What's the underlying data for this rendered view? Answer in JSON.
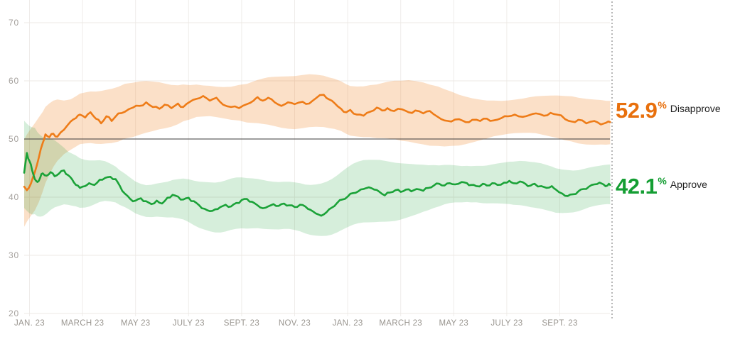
{
  "colors": {
    "background": "#ffffff",
    "grid_horizontal": "#ece8e4",
    "grid_vertical": "#efecea",
    "reference_line": "#3d3d3d",
    "axis_label": "#a09c97",
    "divider": "#9e9e9e",
    "disapprove_line": "#ee7c18",
    "disapprove_band": "rgba(238,124,24,0.24)",
    "disapprove_text": "#e8700d",
    "approve_line": "#1ba238",
    "approve_band": "rgba(27,162,56,0.18)",
    "approve_text": "#149e33",
    "annotation_label_text": "#1f1f1f"
  },
  "chart_data": {
    "type": "line",
    "legend_position": "right-end-labels",
    "grid": true,
    "x_axis": {
      "tick_labels": [
        "JAN. 23",
        "MARCH 23",
        "MAY 23",
        "JULY 23",
        "SEPT. 23",
        "NOV. 23",
        "JAN. 23",
        "MARCH 23",
        "MAY 23",
        "JULY 23",
        "SEPT. 23"
      ],
      "tick_months": [
        0,
        2,
        4,
        6,
        8,
        10,
        12,
        14,
        16,
        18,
        20
      ],
      "unit": "months since Jan 23"
    },
    "y_axis": {
      "tick_labels": [
        "70",
        "60",
        "50",
        "40",
        "30",
        "20"
      ],
      "tick_values": [
        70,
        60,
        50,
        40,
        30,
        20
      ],
      "range": [
        20,
        73
      ],
      "reference_line": 50,
      "unit": "%"
    },
    "series": [
      {
        "name": "Disapprove",
        "end_label": {
          "value": "52.9",
          "unit": "%",
          "text": "Disapprove"
        },
        "points": [
          [
            -0.2,
            41.8
          ],
          [
            -0.1,
            41.2
          ],
          [
            0.05,
            42.3
          ],
          [
            0.2,
            44.3
          ],
          [
            0.35,
            46.8
          ],
          [
            0.5,
            49.3
          ],
          [
            0.6,
            50.8
          ],
          [
            0.75,
            50.3
          ],
          [
            0.9,
            50.9
          ],
          [
            1.05,
            50.4
          ],
          [
            1.3,
            51.6
          ],
          [
            1.55,
            53.0
          ],
          [
            1.75,
            53.6
          ],
          [
            1.9,
            54.2
          ],
          [
            2.1,
            53.7
          ],
          [
            2.3,
            54.6
          ],
          [
            2.5,
            53.5
          ],
          [
            2.7,
            52.7
          ],
          [
            2.9,
            53.9
          ],
          [
            3.1,
            53.1
          ],
          [
            3.35,
            54.4
          ],
          [
            3.6,
            54.7
          ],
          [
            3.9,
            55.4
          ],
          [
            4.15,
            55.7
          ],
          [
            4.4,
            56.3
          ],
          [
            4.65,
            55.5
          ],
          [
            4.9,
            55.2
          ],
          [
            5.1,
            55.9
          ],
          [
            5.35,
            55.3
          ],
          [
            5.6,
            56.1
          ],
          [
            5.8,
            55.5
          ],
          [
            6.05,
            56.4
          ],
          [
            6.3,
            56.9
          ],
          [
            6.55,
            57.4
          ],
          [
            6.8,
            56.6
          ],
          [
            7.05,
            57.1
          ],
          [
            7.3,
            55.9
          ],
          [
            7.6,
            55.5
          ],
          [
            7.9,
            55.3
          ],
          [
            8.2,
            56.0
          ],
          [
            8.45,
            56.6
          ],
          [
            8.6,
            57.2
          ],
          [
            8.8,
            56.6
          ],
          [
            9.0,
            57.1
          ],
          [
            9.25,
            56.3
          ],
          [
            9.5,
            55.7
          ],
          [
            9.75,
            56.3
          ],
          [
            10.0,
            56.0
          ],
          [
            10.3,
            56.4
          ],
          [
            10.55,
            56.1
          ],
          [
            10.8,
            57.0
          ],
          [
            11.1,
            57.6
          ],
          [
            11.3,
            56.8
          ],
          [
            11.5,
            56.2
          ],
          [
            11.75,
            55.2
          ],
          [
            11.95,
            54.6
          ],
          [
            12.1,
            55.0
          ],
          [
            12.35,
            54.2
          ],
          [
            12.6,
            54.0
          ],
          [
            12.85,
            54.7
          ],
          [
            13.1,
            55.4
          ],
          [
            13.3,
            54.9
          ],
          [
            13.5,
            55.3
          ],
          [
            13.75,
            54.8
          ],
          [
            14.05,
            55.1
          ],
          [
            14.3,
            54.6
          ],
          [
            14.55,
            54.9
          ],
          [
            14.85,
            54.4
          ],
          [
            15.1,
            54.8
          ],
          [
            15.4,
            53.8
          ],
          [
            15.65,
            53.2
          ],
          [
            15.9,
            53.0
          ],
          [
            16.2,
            53.4
          ],
          [
            16.45,
            52.9
          ],
          [
            16.7,
            53.3
          ],
          [
            17.0,
            53.1
          ],
          [
            17.25,
            53.5
          ],
          [
            17.5,
            53.2
          ],
          [
            17.8,
            53.6
          ],
          [
            18.05,
            53.9
          ],
          [
            18.3,
            54.2
          ],
          [
            18.6,
            53.8
          ],
          [
            18.85,
            54.1
          ],
          [
            19.1,
            54.4
          ],
          [
            19.4,
            54.0
          ],
          [
            19.65,
            54.5
          ],
          [
            19.9,
            54.2
          ],
          [
            20.2,
            53.4
          ],
          [
            20.45,
            53.0
          ],
          [
            20.7,
            53.3
          ],
          [
            21.0,
            52.7
          ],
          [
            21.3,
            53.1
          ],
          [
            21.55,
            52.5
          ],
          [
            21.75,
            52.8
          ],
          [
            21.9,
            52.9
          ]
        ]
      },
      {
        "name": "Approve",
        "end_label": {
          "value": "42.1",
          "unit": "%",
          "text": "Approve"
        },
        "points": [
          [
            -0.2,
            44.2
          ],
          [
            -0.1,
            47.6
          ],
          [
            0.0,
            46.2
          ],
          [
            0.1,
            44.6
          ],
          [
            0.2,
            43.1
          ],
          [
            0.3,
            42.6
          ],
          [
            0.4,
            43.3
          ],
          [
            0.5,
            44.1
          ],
          [
            0.65,
            43.7
          ],
          [
            0.8,
            44.3
          ],
          [
            0.95,
            43.6
          ],
          [
            1.1,
            44.0
          ],
          [
            1.3,
            44.6
          ],
          [
            1.45,
            43.8
          ],
          [
            1.6,
            43.1
          ],
          [
            1.75,
            42.1
          ],
          [
            1.9,
            41.6
          ],
          [
            2.1,
            41.9
          ],
          [
            2.25,
            42.4
          ],
          [
            2.45,
            42.1
          ],
          [
            2.65,
            43.0
          ],
          [
            2.85,
            43.3
          ],
          [
            3.05,
            43.5
          ],
          [
            3.25,
            43.1
          ],
          [
            3.4,
            42.0
          ],
          [
            3.6,
            40.6
          ],
          [
            3.8,
            39.7
          ],
          [
            4.0,
            39.4
          ],
          [
            4.2,
            39.8
          ],
          [
            4.4,
            39.3
          ],
          [
            4.6,
            38.8
          ],
          [
            4.8,
            39.4
          ],
          [
            5.0,
            38.9
          ],
          [
            5.2,
            39.9
          ],
          [
            5.4,
            40.4
          ],
          [
            5.6,
            40.1
          ],
          [
            5.8,
            39.6
          ],
          [
            6.0,
            39.9
          ],
          [
            6.2,
            39.3
          ],
          [
            6.4,
            38.6
          ],
          [
            6.6,
            38.0
          ],
          [
            6.8,
            37.6
          ],
          [
            7.0,
            37.9
          ],
          [
            7.2,
            38.3
          ],
          [
            7.4,
            38.7
          ],
          [
            7.6,
            38.4
          ],
          [
            7.8,
            39.0
          ],
          [
            8.0,
            39.5
          ],
          [
            8.2,
            39.7
          ],
          [
            8.4,
            39.2
          ],
          [
            8.6,
            38.6
          ],
          [
            8.8,
            38.1
          ],
          [
            9.0,
            38.4
          ],
          [
            9.2,
            38.8
          ],
          [
            9.4,
            38.5
          ],
          [
            9.6,
            38.9
          ],
          [
            9.8,
            38.6
          ],
          [
            10.0,
            38.3
          ],
          [
            10.2,
            38.7
          ],
          [
            10.4,
            38.4
          ],
          [
            10.6,
            37.8
          ],
          [
            10.8,
            37.2
          ],
          [
            11.0,
            36.8
          ],
          [
            11.2,
            37.4
          ],
          [
            11.4,
            38.2
          ],
          [
            11.6,
            39.0
          ],
          [
            11.8,
            39.6
          ],
          [
            12.0,
            40.1
          ],
          [
            12.2,
            40.7
          ],
          [
            12.4,
            41.0
          ],
          [
            12.6,
            41.4
          ],
          [
            12.8,
            41.7
          ],
          [
            13.0,
            41.3
          ],
          [
            13.2,
            40.9
          ],
          [
            13.4,
            40.3
          ],
          [
            13.6,
            40.8
          ],
          [
            13.8,
            41.2
          ],
          [
            14.0,
            40.9
          ],
          [
            14.2,
            41.3
          ],
          [
            14.4,
            41.0
          ],
          [
            14.6,
            41.4
          ],
          [
            14.85,
            41.1
          ],
          [
            15.05,
            41.6
          ],
          [
            15.25,
            42.0
          ],
          [
            15.45,
            42.3
          ],
          [
            15.65,
            42.0
          ],
          [
            15.85,
            42.4
          ],
          [
            16.05,
            42.2
          ],
          [
            16.3,
            42.6
          ],
          [
            16.5,
            42.4
          ],
          [
            16.65,
            42.1
          ],
          [
            16.85,
            41.9
          ],
          [
            17.1,
            42.3
          ],
          [
            17.25,
            42.0
          ],
          [
            17.45,
            42.4
          ],
          [
            17.65,
            42.1
          ],
          [
            17.9,
            42.5
          ],
          [
            18.1,
            42.8
          ],
          [
            18.25,
            42.4
          ],
          [
            18.5,
            42.7
          ],
          [
            18.7,
            42.3
          ],
          [
            18.9,
            42.0
          ],
          [
            19.05,
            42.3
          ],
          [
            19.3,
            41.9
          ],
          [
            19.5,
            41.6
          ],
          [
            19.7,
            41.9
          ],
          [
            19.85,
            41.3
          ],
          [
            20.1,
            40.6
          ],
          [
            20.3,
            40.2
          ],
          [
            20.5,
            40.5
          ],
          [
            20.7,
            41.0
          ],
          [
            20.9,
            41.4
          ],
          [
            21.1,
            41.8
          ],
          [
            21.3,
            42.2
          ],
          [
            21.5,
            42.5
          ],
          [
            21.65,
            42.2
          ],
          [
            21.8,
            42.0
          ],
          [
            21.9,
            42.1
          ]
        ]
      }
    ],
    "current_value_divider": {
      "style": "dotted",
      "position": "right edge of data"
    }
  }
}
